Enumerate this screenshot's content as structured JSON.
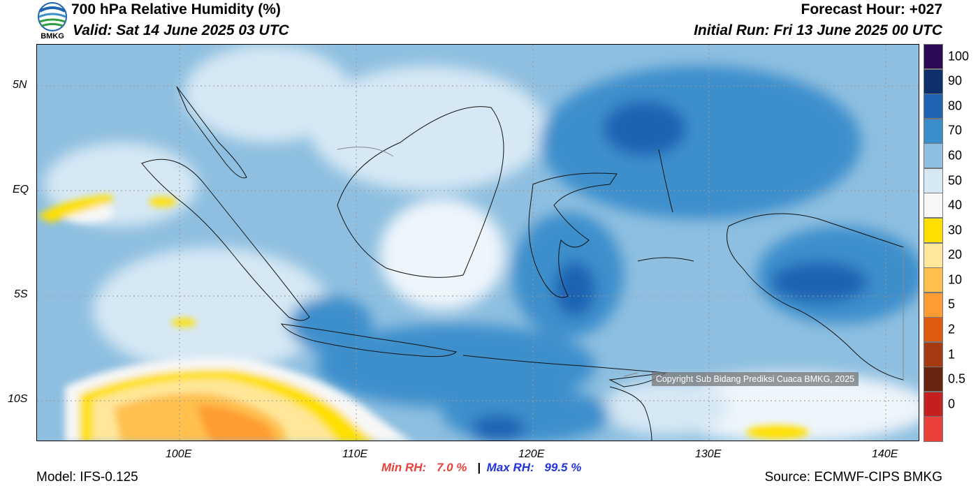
{
  "header": {
    "title": "700 hPa Relative Humidity (%)",
    "valid": "Valid: Sat 14 June 2025 03 UTC",
    "forecast_hour": "Forecast Hour: +027",
    "initial_run": "Initial Run: Fri 13 June 2025 00 UTC",
    "logo_text": "BMKG"
  },
  "map": {
    "lat_labels": [
      "5N",
      "EQ",
      "5S",
      "10S"
    ],
    "lon_labels": [
      "100E",
      "110E",
      "120E",
      "130E",
      "140E"
    ],
    "copyright": "Copyright Sub Bidang Prediksi Cuaca BMKG, 2025"
  },
  "colorbar": {
    "labels": [
      "100",
      "90",
      "80",
      "70",
      "60",
      "50",
      "40",
      "30",
      "20",
      "10",
      "5",
      "2",
      "1",
      "0.5",
      "0"
    ],
    "colors_top_to_bottom": [
      "#2a0a55",
      "#0d2f6b",
      "#1f63b3",
      "#3d8fcc",
      "#8ebfe0",
      "#d6e8f4",
      "#f7f7f7",
      "#ffe000",
      "#ffe699",
      "#ffc04d",
      "#ff9c33",
      "#e05a10",
      "#a63a10",
      "#6b2410",
      "#c42020",
      "#e8423a"
    ]
  },
  "stats": {
    "min_label": "Min RH:",
    "min_value": "7.0 %",
    "separator": "|",
    "max_label": "Max RH:",
    "max_value": "99.5 %",
    "min_color": "#e8423a",
    "max_color": "#2233dd"
  },
  "footer": {
    "model": "Model: IFS-0.125",
    "source": "Source: ECMWF-CIPS BMKG"
  }
}
